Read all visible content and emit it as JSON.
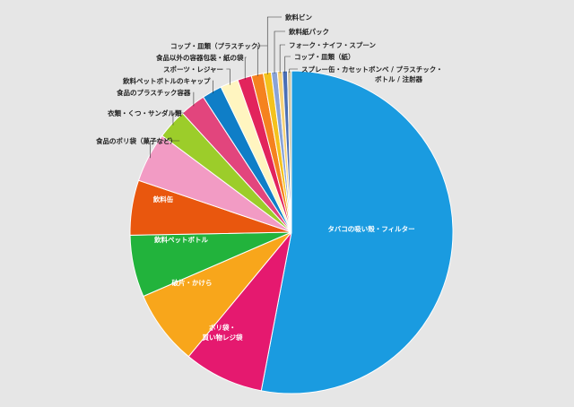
{
  "chart_data": {
    "type": "pie",
    "categories": [
      "タバコの吸い殻・フィルター",
      "ポリ袋・買い物レジ袋",
      "破片・かけら",
      "飲料ペットボトル",
      "飲料缶",
      "食品のポリ袋（菓子など）",
      "衣類・くつ・サンダル類",
      "食品のプラスチック容器",
      "飲料ペットボトルのキャップ",
      "スポーツ・レジャー",
      "食品以外の容器包装・紙の袋",
      "コップ・皿類（プラスチック）",
      "飲料ビン",
      "飲料紙パック",
      "フォーク・ナイフ・スプーン",
      "コップ・皿類（紙）",
      "スプレー缶・カセットボンベ / プラスチック・ボトル / 注射器"
    ],
    "values": [
      53.0,
      8.0,
      7.5,
      6.2,
      5.5,
      5.0,
      3.0,
      2.6,
      2.0,
      1.8,
      1.4,
      1.2,
      0.8,
      0.6,
      0.5,
      0.5,
      0.4
    ],
    "colors": [
      "#1a9be0",
      "#e5196f",
      "#f8a61b",
      "#22b33c",
      "#e9570e",
      "#f29bc4",
      "#9ccd2a",
      "#e2457d",
      "#0f7ec7",
      "#fff5c0",
      "#e2245c",
      "#f5821f",
      "#f4c21d",
      "#8aa3d6",
      "#f7d37a",
      "#4a6fb5",
      "#cfc7a8"
    ],
    "label_lines": [
      [
        "タバコの吸い殻・フィルター"
      ],
      [
        "ポリ袋・",
        "買い物レジ袋"
      ],
      [
        "破片・かけら"
      ],
      [
        "飲料ペットボトル"
      ],
      [
        "飲料缶"
      ],
      [
        "食品のポリ袋（菓子など）"
      ],
      [
        "衣類・くつ・サンダル類"
      ],
      [
        "食品のプラスチック容器"
      ],
      [
        "飲料ペットボトルのキャップ"
      ],
      [
        "スポーツ・レジャー"
      ],
      [
        "食品以外の容器包装・紙の袋"
      ],
      [
        "コップ・皿類（プラスチック）"
      ],
      [
        "飲料ビン"
      ],
      [
        "飲料紙パック"
      ],
      [
        "フォーク・ナイフ・スプーン"
      ],
      [
        "コップ・皿類（紙）"
      ],
      [
        "スプレー缶・カセットボンベ / プラスチック・",
        "ボトル / 注射器"
      ]
    ],
    "title": "",
    "legend": "none"
  }
}
